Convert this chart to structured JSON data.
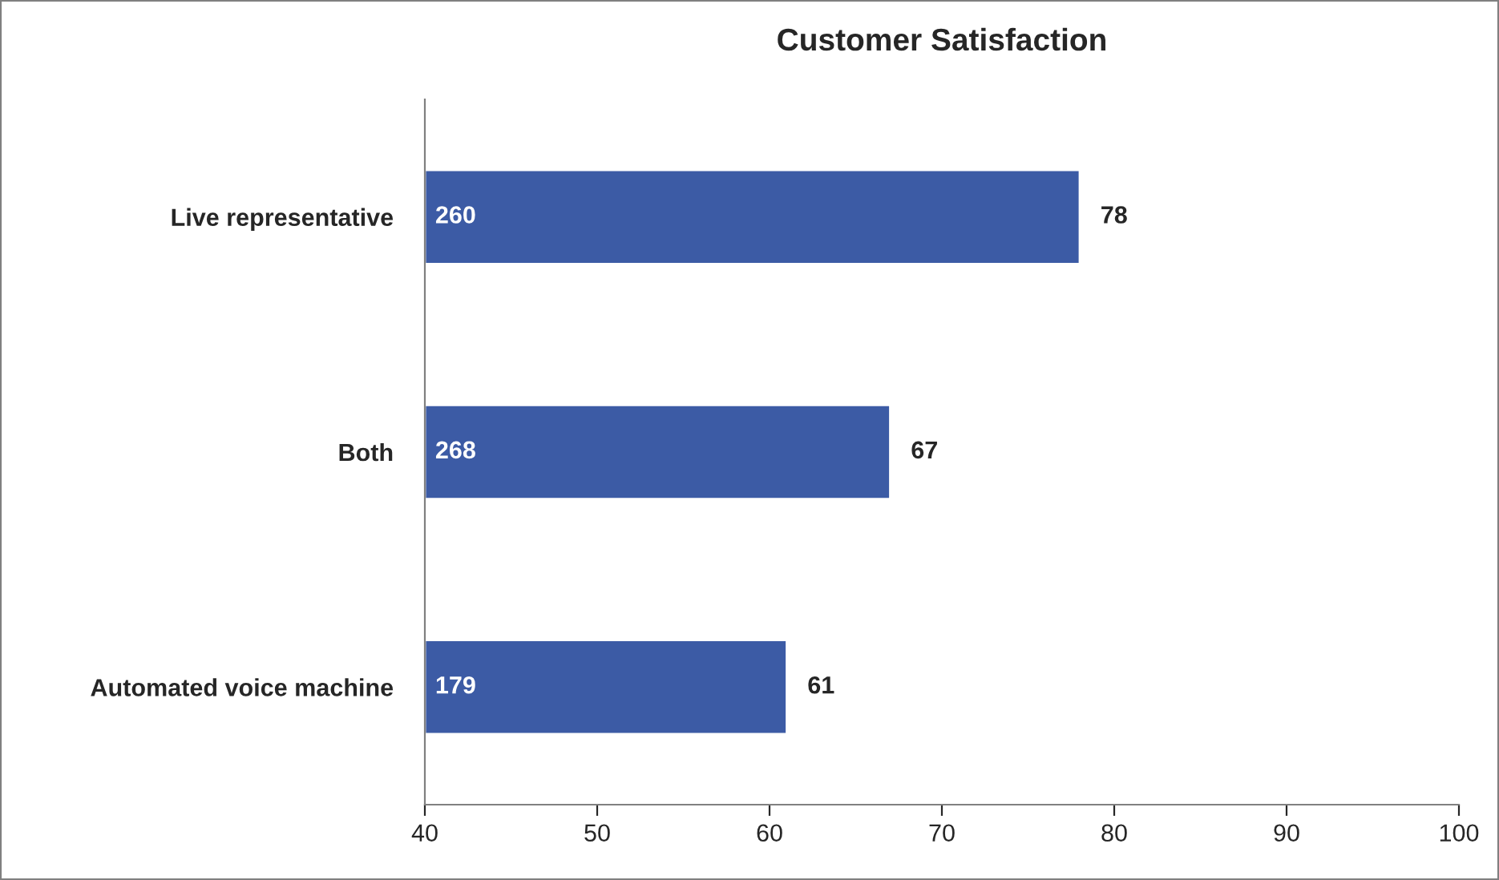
{
  "chart_data": {
    "type": "bar",
    "orientation": "horizontal",
    "title": "Customer Satisfaction",
    "categories": [
      "Live representative",
      "Both",
      "Automated voice machine"
    ],
    "values": [
      78,
      67,
      61
    ],
    "color": "#3c5ba5",
    "data_labels": true,
    "xlim": [
      40,
      100
    ],
    "xticks": [
      40,
      50,
      60,
      70,
      80,
      90,
      100
    ],
    "grid": false,
    "legend": false,
    "annotations": [
      "260",
      "268",
      "179"
    ]
  }
}
